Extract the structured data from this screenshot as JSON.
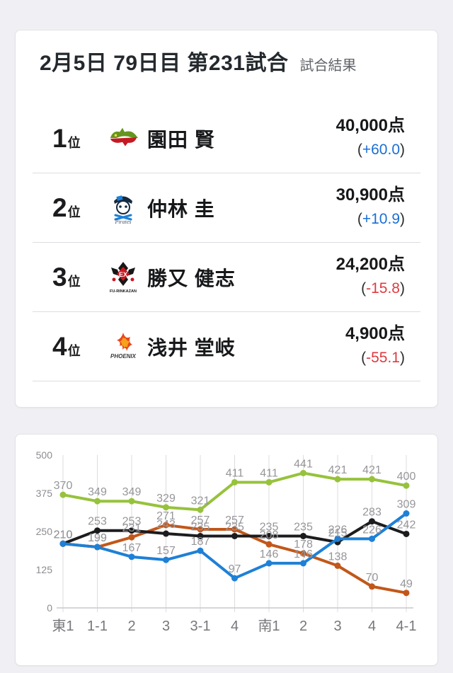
{
  "header": {
    "title": "2月5日 79日目 第231試合",
    "subtitle": "試合結果"
  },
  "punct": {
    "open": "(",
    "close": ")"
  },
  "results": [
    {
      "rank": "1",
      "rank_suffix": "位",
      "team_icon": "akasaka-drivens-dragon-logo",
      "player": "園田 賢",
      "points": "40,000点",
      "delta": "+60.0",
      "delta_color": "#1a6fd4"
    },
    {
      "rank": "2",
      "rank_suffix": "位",
      "team_icon": "u-next-pirates-logo",
      "player": "仲林 圭",
      "points": "30,900点",
      "delta": "+10.9",
      "delta_color": "#1a6fd4"
    },
    {
      "rank": "3",
      "rank_suffix": "位",
      "team_icon": "ex-furinkazan-logo",
      "player": "勝又 健志",
      "points": "24,200点",
      "delta": "-15.8",
      "delta_color": "#e03a40"
    },
    {
      "rank": "4",
      "rank_suffix": "位",
      "team_icon": "sega-sammy-phoenix-logo",
      "player": "浅井 堂岐",
      "points": "4,900点",
      "delta": "-55.1",
      "delta_color": "#e03a40"
    }
  ],
  "chart_data": {
    "type": "line",
    "title": "",
    "xlabel": "",
    "ylabel": "",
    "x": [
      "東1",
      "1-1",
      "2",
      "3",
      "3-1",
      "4",
      "南1",
      "2",
      "3",
      "4",
      "4-1"
    ],
    "ylim": [
      0,
      500
    ],
    "yticks": [
      0,
      125,
      250,
      375,
      500
    ],
    "grid": "vertical",
    "legend": "none",
    "series": [
      {
        "name": "園田 賢",
        "color": "#97c23c",
        "values": [
          370,
          349,
          349,
          329,
          321,
          411,
          411,
          441,
          421,
          421,
          400
        ]
      },
      {
        "name": "浅井 堂岐",
        "color": "#c2571a",
        "values": [
          210,
          199,
          231,
          271,
          257,
          257,
          208,
          178,
          138,
          70,
          49
        ]
      },
      {
        "name": "勝又 健志",
        "color": "#1c1c1e",
        "values": [
          210,
          253,
          253,
          243,
          235,
          235,
          235,
          235,
          215,
          283,
          242
        ]
      },
      {
        "name": "仲林 圭",
        "color": "#1e80d6",
        "values": [
          210,
          199,
          167,
          157,
          187,
          97,
          146,
          146,
          226,
          226,
          309
        ]
      }
    ]
  }
}
